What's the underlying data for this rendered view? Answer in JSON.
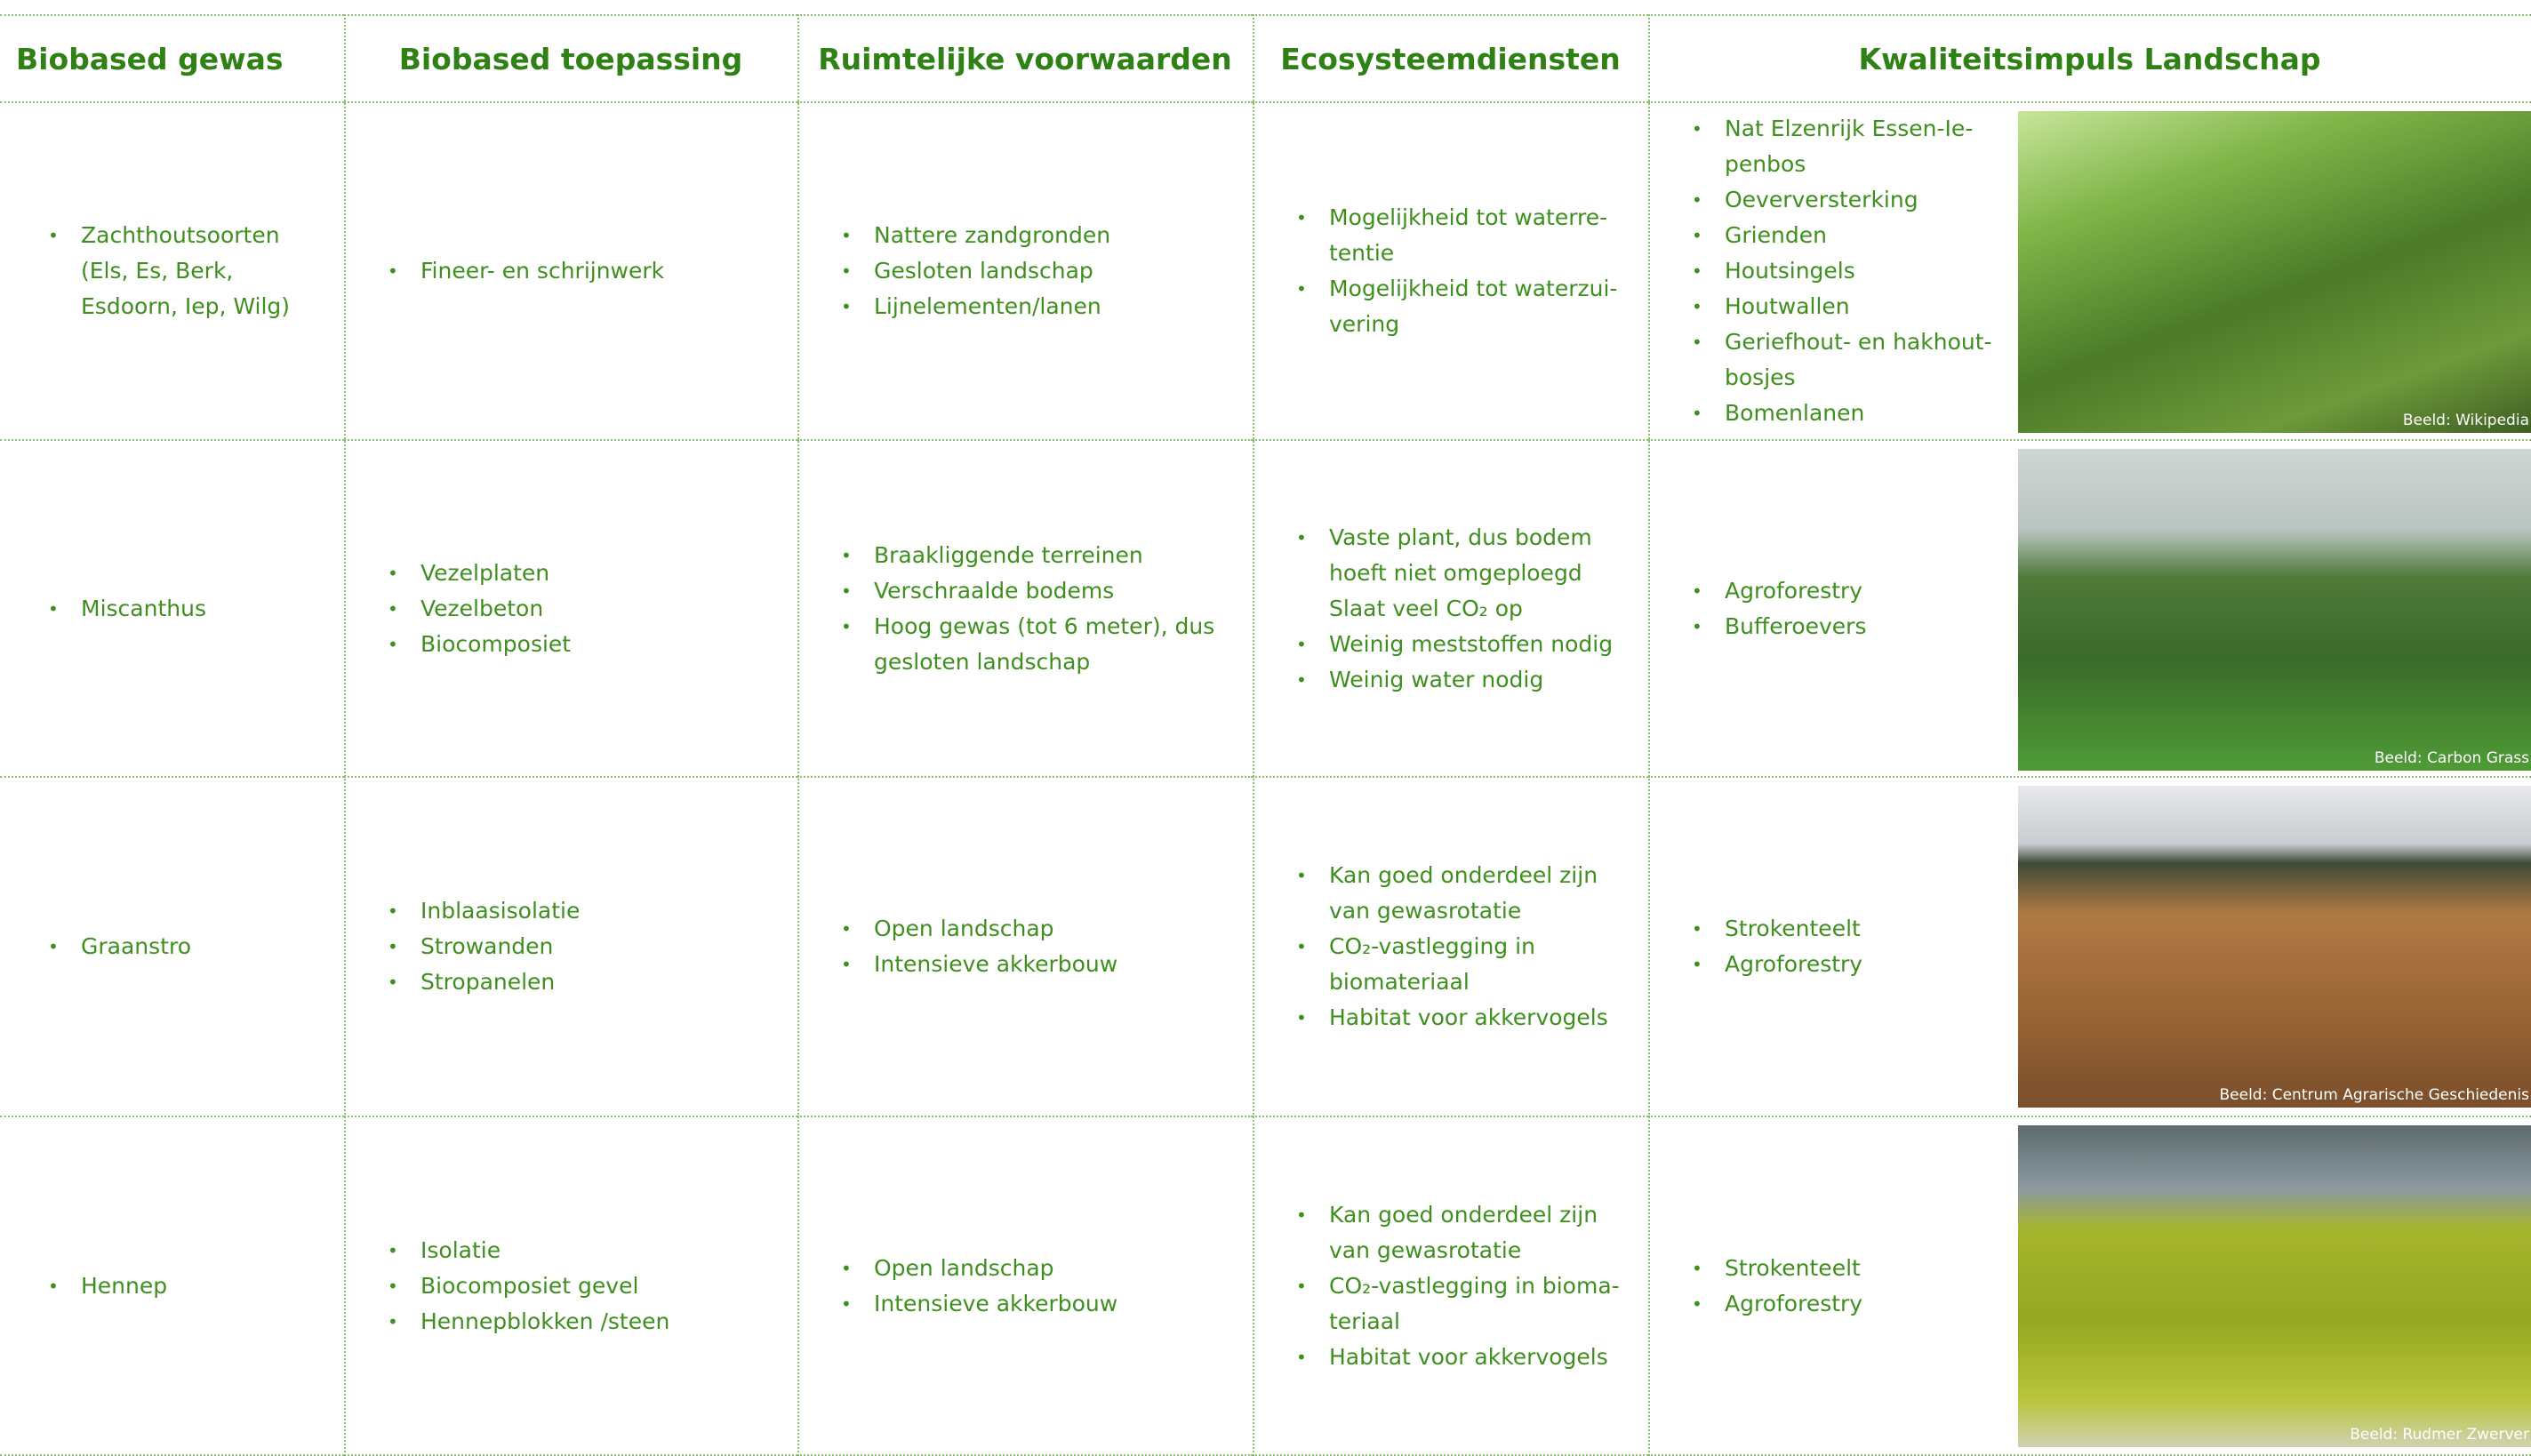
{
  "table": {
    "headers": [
      "Biobased gewas",
      "Biobased toepassing",
      "Ruimtelijke voorwaarden",
      "Ecosysteemdiensten",
      "Kwaliteitsimpuls Landschap"
    ],
    "rows": [
      {
        "gewas": [
          "Zachthoutsoorten (Els, Es, Berk, Esdoorn, Iep, Wilg)"
        ],
        "toepassing": [
          "Fineer- en schrijnwerk"
        ],
        "voorwaarden": [
          "Nattere zandgronden",
          "Gesloten landschap",
          "Lijnelementen/lanen"
        ],
        "ecosysteem": [
          "Mogelijkheid tot waterre­tentie",
          "Mogelijkheid tot waterzui­vering"
        ],
        "landschap": [
          "Nat Elzenrijk Essen-Ie­penbos",
          "Oeverversterking",
          "Grienden",
          "Houtsingels",
          "Houtwallen",
          "Geriefhout- en hakhout­bosjes",
          "Bomenlanen"
        ],
        "beeld": "Beeld: Wikipedia"
      },
      {
        "gewas": [
          "Miscanthus"
        ],
        "toepassing": [
          "Vezelplaten",
          "Vezelbeton",
          "Biocomposiet"
        ],
        "voorwaarden": [
          "Braakliggende terreinen",
          "Verschraalde bodems",
          "Hoog gewas (tot 6 meter), dus gesloten landschap"
        ],
        "ecosysteem": [
          "Vaste plant, dus bodem hoeft niet omgeploegd Slaat veel CO₂ op",
          "Weinig meststoffen nodig",
          "Weinig water nodig"
        ],
        "landschap": [
          "Agroforestry",
          "Bufferoevers"
        ],
        "beeld": "Beeld: Carbon Grass"
      },
      {
        "gewas": [
          "Graanstro"
        ],
        "toepassing": [
          "Inblaasisolatie",
          "Strowanden",
          "Stropanelen"
        ],
        "voorwaarden": [
          "Open landschap",
          "Intensieve akkerbouw"
        ],
        "ecosysteem": [
          "Kan goed onderdeel zijn van gewasrotatie",
          "CO₂-vastlegging in biomateriaal",
          "Habitat voor akkervogels"
        ],
        "landschap": [
          "Strokenteelt",
          "Agroforestry"
        ],
        "beeld": "Beeld: Centrum Agrarische Geschiedenis"
      },
      {
        "gewas": [
          "Hennep"
        ],
        "toepassing": [
          "Isolatie",
          "Biocomposiet gevel",
          "Hennepblokken /steen"
        ],
        "voorwaarden": [
          "Open landschap",
          "Intensieve akkerbouw"
        ],
        "ecosysteem": [
          "Kan goed onderdeel zijn van gewasrotatie",
          "CO₂-vastlegging in bioma­teriaal",
          "Habitat voor akkervogels"
        ],
        "landschap": [
          "Strokenteelt",
          "Agroforestry"
        ],
        "beeld": "Beeld: Rudmer Zwerver"
      }
    ]
  }
}
